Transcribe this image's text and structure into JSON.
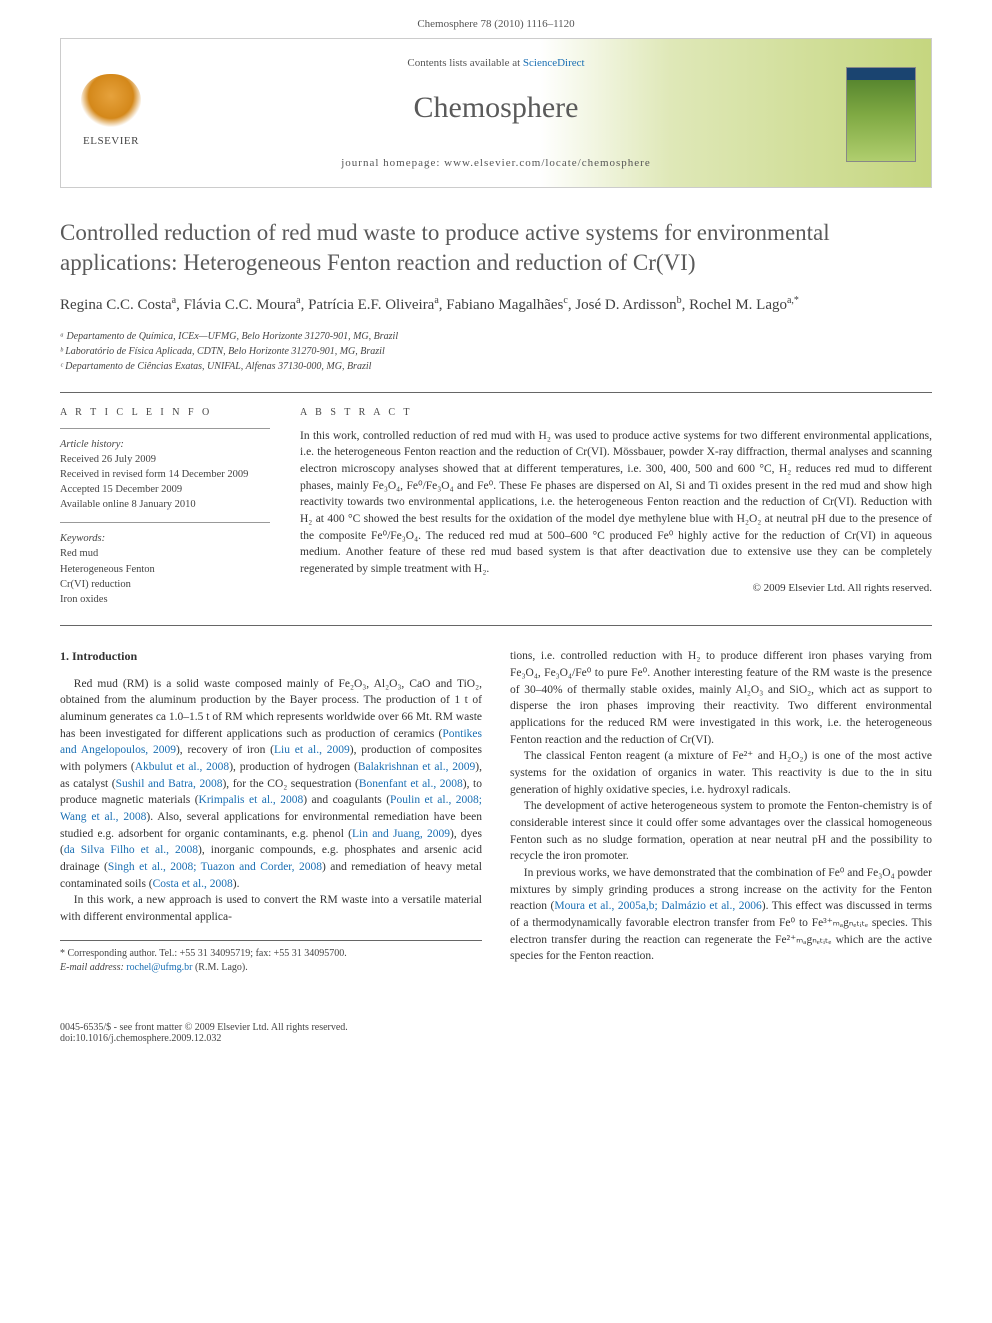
{
  "header": {
    "citation": "Chemosphere 78 (2010) 1116–1120"
  },
  "banner": {
    "contents_prefix": "Contents lists available at ",
    "contents_link": "ScienceDirect",
    "journal_name": "Chemosphere",
    "homepage": "journal homepage: www.elsevier.com/locate/chemosphere",
    "publisher": "ELSEVIER"
  },
  "article": {
    "title": "Controlled reduction of red mud waste to produce active systems for environmental applications: Heterogeneous Fenton reaction and reduction of Cr(VI)",
    "authors_html": "Regina C.C. Costa<sup>a</sup>, Flávia C.C. Moura<sup>a</sup>, Patrícia E.F. Oliveira<sup>a</sup>, Fabiano Magalhães<sup>c</sup>, José D. Ardisson<sup>b</sup>, Rochel M. Lago<sup>a,*</sup>",
    "affiliations": [
      "ᵃ Departamento de Química, ICEx—UFMG, Belo Horizonte 31270-901, MG, Brazil",
      "ᵇ Laboratório de Física Aplicada, CDTN, Belo Horizonte 31270-901, MG, Brazil",
      "ᶜ Departamento de Ciências Exatas, UNIFAL, Alfenas 37130-000, MG, Brazil"
    ]
  },
  "info": {
    "head": "A R T I C L E   I N F O",
    "history_head": "Article history:",
    "history": [
      "Received 26 July 2009",
      "Received in revised form 14 December 2009",
      "Accepted 15 December 2009",
      "Available online 8 January 2010"
    ],
    "keywords_head": "Keywords:",
    "keywords": [
      "Red mud",
      "Heterogeneous Fenton",
      "Cr(VI) reduction",
      "Iron oxides"
    ]
  },
  "abstract": {
    "head": "A B S T R A C T",
    "text": "In this work, controlled reduction of red mud with H₂ was used to produce active systems for two different environmental applications, i.e. the heterogeneous Fenton reaction and the reduction of Cr(VI). Mössbauer, powder X-ray diffraction, thermal analyses and scanning electron microscopy analyses showed that at different temperatures, i.e. 300, 400, 500 and 600 °C, H₂ reduces red mud to different phases, mainly Fe₃O₄, Fe⁰/Fe₃O₄ and Fe⁰. These Fe phases are dispersed on Al, Si and Ti oxides present in the red mud and show high reactivity towards two environmental applications, i.e. the heterogeneous Fenton reaction and the reduction of Cr(VI). Reduction with H₂ at 400 °C showed the best results for the oxidation of the model dye methylene blue with H₂O₂ at neutral pH due to the presence of the composite Fe⁰/Fe₃O₄. The reduced red mud at 500–600 °C produced Fe⁰ highly active for the reduction of Cr(VI) in aqueous medium. Another feature of these red mud based system is that after deactivation due to extensive use they can be completely regenerated by simple treatment with H₂.",
    "copyright": "© 2009 Elsevier Ltd. All rights reserved."
  },
  "body": {
    "section_title": "1. Introduction",
    "p1_a": "Red mud (RM) is a solid waste composed mainly of Fe₂O₃, Al₂O₃, CaO and TiO₂, obtained from the aluminum production by the Bayer process. The production of 1 t of aluminum generates ca 1.0–1.5 t of RM which represents worldwide over 66 Mt. RM waste has been investigated for different applications such as production of ceramics (",
    "c1": "Pontikes and Angelopoulos, 2009",
    "p1_b": "), recovery of iron (",
    "c2": "Liu et al., 2009",
    "p1_c": "), production of composites with polymers (",
    "c3": "Akbulut et al., 2008",
    "p1_d": "), production of hydrogen (",
    "c4": "Balakrishnan et al., 2009",
    "p1_e": "), as catalyst (",
    "c5": "Sushil and Batra, 2008",
    "p1_f": "), for the CO₂ sequestration (",
    "c6": "Bonenfant et al., 2008",
    "p1_g": "), to produce magnetic materials (",
    "c7": "Krimpalis et al., 2008",
    "p1_h": ") and coagulants (",
    "c8": "Poulin et al., 2008; Wang et al., 2008",
    "p1_i": "). Also, several applications for environmental remediation have been studied e.g. adsorbent for organic contaminants, e.g. phenol (",
    "c9": "Lin and Juang, 2009",
    "p1_j": "), dyes (",
    "c10": "da Silva Filho et al., 2008",
    "p1_k": "), inorganic compounds, e.g. phosphates and arsenic acid drainage (",
    "c11": "Singh et al., 2008; Tuazon and Corder, 2008",
    "p1_l": ") and remediation of heavy metal contaminated soils (",
    "c12": "Costa et al., 2008",
    "p1_m": ").",
    "p2": "In this work, a new approach is used to convert the RM waste into a versatile material with different environmental applica-",
    "p3": "tions, i.e. controlled reduction with H₂ to produce different iron phases varying from Fe₃O₄, Fe₃O₄/Fe⁰ to pure Fe⁰. Another interesting feature of the RM waste is the presence of 30–40% of thermally stable oxides, mainly Al₂O₃ and SiO₂, which act as support to disperse the iron phases improving their reactivity. Two different environmental applications for the reduced RM were investigated in this work, i.e. the heterogeneous Fenton reaction and the reduction of Cr(VI).",
    "p4": "The classical Fenton reagent (a mixture of Fe²⁺ and H₂O₂) is one of the most active systems for the oxidation of organics in water. This reactivity is due to the in situ generation of highly oxidative species, i.e. hydroxyl radicals.",
    "p5": "The development of active heterogeneous system to promote the Fenton-chemistry is of considerable interest since it could offer some advantages over the classical homogeneous Fenton such as no sludge formation, operation at near neutral pH and the possibility to recycle the iron promoter.",
    "p6_a": "In previous works, we have demonstrated that the combination of Fe⁰ and Fe₃O₄ powder mixtures by simply grinding produces a strong increase on the activity for the Fenton reaction (",
    "c13": "Moura et al., 2005a,b; Dalmázio et al., 2006",
    "p6_b": "). This effect was discussed in terms of a thermodynamically favorable electron transfer from Fe⁰ to Fe³⁺ₘₐgₙₑₜᵢₜₑ species. This electron transfer during the reaction can regenerate the Fe²⁺ₘₐgₙₑₜᵢₜₑ which are the active species for the Fenton reaction."
  },
  "footnote": {
    "corr": "* Corresponding author. Tel.: +55 31 34095719; fax: +55 31 34095700.",
    "email_label": "E-mail address:",
    "email": "rochel@ufmg.br",
    "email_tail": "(R.M. Lago)."
  },
  "footer": {
    "line1": "0045-6535/$ - see front matter © 2009 Elsevier Ltd. All rights reserved.",
    "line2": "doi:10.1016/j.chemosphere.2009.12.032"
  },
  "colors": {
    "link": "#1a6fb3",
    "text": "#333333",
    "heading_gray": "#5a5a5a"
  }
}
